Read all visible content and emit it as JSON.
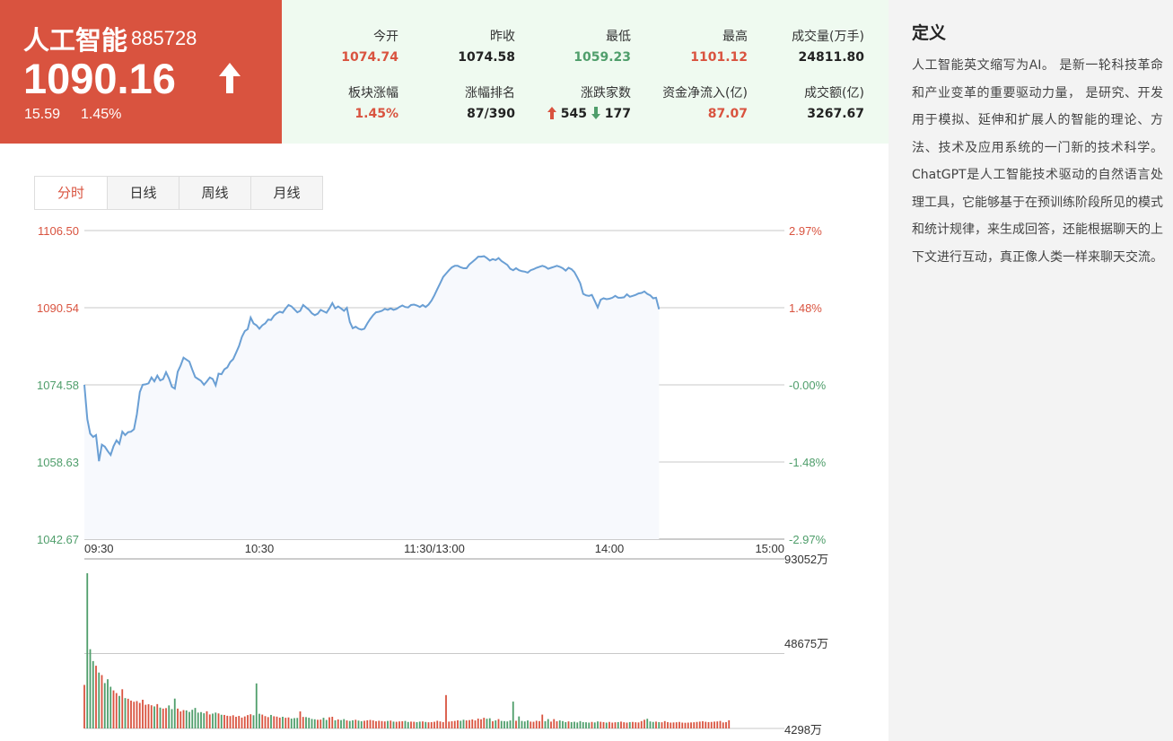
{
  "header": {
    "name": "人工智能",
    "code": "885728",
    "price": "1090.16",
    "change": "15.59",
    "change_pct": "1.45%",
    "direction": "up"
  },
  "stats": [
    {
      "label": "今开",
      "value": "1074.74",
      "color": "red"
    },
    {
      "label": "昨收",
      "value": "1074.58",
      "color": "dark"
    },
    {
      "label": "最低",
      "value": "1059.23",
      "color": "green"
    },
    {
      "label": "最高",
      "value": "1101.12",
      "color": "red"
    },
    {
      "label": "成交量(万手)",
      "value": "24811.80",
      "color": "dark"
    },
    {
      "label": "板块涨幅",
      "value": "1.45%",
      "color": "red"
    },
    {
      "label": "涨幅排名",
      "value": "87/390",
      "color": "dark"
    },
    {
      "label": "涨跌家数",
      "up": "545",
      "down": "177",
      "color": "dark"
    },
    {
      "label": "资金净流入(亿)",
      "value": "87.07",
      "color": "red"
    },
    {
      "label": "成交额(亿)",
      "value": "3267.67",
      "color": "dark"
    }
  ],
  "definition": {
    "title": "定义",
    "body": "人工智能英文缩写为AI。 是新一轮科技革命和产业变革的重要驱动力量， 是研究、开发用于模拟、延伸和扩展人的智能的理论、方法、技术及应用系统的一门新的技术科学。ChatGPT是人工智能技术驱动的自然语言处理工具，它能够基于在预训练阶段所见的模式和统计规律，来生成回答，还能根据聊天的上下文进行互动，真正像人类一样来聊天交流。"
  },
  "tabs": [
    {
      "label": "分时",
      "active": true
    },
    {
      "label": "日线",
      "active": false
    },
    {
      "label": "周线",
      "active": false
    },
    {
      "label": "月线",
      "active": false
    }
  ],
  "colors": {
    "up": "#d9533f",
    "down": "#4f9e6b",
    "line": "#6a9fd4",
    "area": "#f7f9fd",
    "grid": "#c8c8c8"
  },
  "chart_data": {
    "type": "line",
    "title": "",
    "xlabel": "",
    "ylabel": "",
    "time_ticks": [
      "09:30",
      "10:30",
      "11:30/13:00",
      "14:00",
      "15:00"
    ],
    "price_ticks": [
      "1106.50",
      "1090.54",
      "1074.58",
      "1058.63",
      "1042.67"
    ],
    "pct_ticks": [
      "2.97%",
      "1.48%",
      "-0.00%",
      "-1.48%",
      "-2.97%"
    ],
    "ylim": [
      1042.67,
      1106.5
    ],
    "prev_close": 1074.58,
    "minutes_total": 240,
    "price_series": [
      1074.6,
      1067.5,
      1064.5,
      1063.8,
      1064.2,
      1058.8,
      1062.2,
      1061.8,
      1060.9,
      1060.1,
      1061.9,
      1063.1,
      1062.4,
      1064.9,
      1064.2,
      1064.8,
      1064.9,
      1065.4,
      1068.5,
      1073.1,
      1074.6,
      1074.7,
      1074.9,
      1076.1,
      1075.3,
      1076.5,
      1075.5,
      1075.8,
      1077.2,
      1075.9,
      1074.2,
      1073.8,
      1077.3,
      1078.6,
      1080.2,
      1079.8,
      1079.4,
      1077.7,
      1076.2,
      1075.8,
      1075.4,
      1074.6,
      1075.3,
      1076.1,
      1075.8,
      1074.5,
      1076.9,
      1076.8,
      1077.8,
      1078.2,
      1079.3,
      1079.9,
      1081.2,
      1082.6,
      1084.5,
      1085.7,
      1086.1,
      1088.5,
      1087.3,
      1086.9,
      1086.2,
      1086.9,
      1087.3,
      1088.1,
      1088.0,
      1088.9,
      1089.4,
      1089.7,
      1089.5,
      1090.4,
      1091.1,
      1090.8,
      1090.2,
      1089.6,
      1089.9,
      1091.1,
      1090.6,
      1090.1,
      1089.4,
      1089.0,
      1089.3,
      1090.1,
      1089.8,
      1089.5,
      1090.4,
      1091.5,
      1090.4,
      1090.8,
      1090.4,
      1089.9,
      1090.5,
      1087.6,
      1086.3,
      1086.6,
      1086.2,
      1086.0,
      1086.2,
      1087.3,
      1088.2,
      1089.0,
      1089.6,
      1089.7,
      1089.9,
      1090.3,
      1090.1,
      1090.4,
      1090.1,
      1090.3,
      1090.7,
      1091.0,
      1090.7,
      1090.6,
      1091.1,
      1091.2,
      1091.0,
      1090.7,
      1091.1,
      1090.7,
      1091.2,
      1092.0,
      1093.1,
      1094.4,
      1095.6,
      1096.9,
      1097.6,
      1098.3,
      1098.9,
      1099.2,
      1099.2,
      1098.9,
      1098.7,
      1098.7,
      1099.5,
      1100.0,
      1100.5,
      1101.1,
      1101.1,
      1101.2,
      1100.8,
      1100.3,
      1100.6,
      1100.4,
      1100.8,
      1100.2,
      1099.8,
      1099.4,
      1098.6,
      1098.3,
      1098.7,
      1098.3,
      1098.1,
      1098.0,
      1097.8,
      1098.3,
      1098.5,
      1098.8,
      1099.0,
      1099.2,
      1099.0,
      1098.6,
      1098.8,
      1099.0,
      1099.2,
      1099.0,
      1098.7,
      1098.2,
      1098.8,
      1098.5,
      1097.9,
      1096.8,
      1095.6,
      1093.4,
      1093.1,
      1093.0,
      1093.2,
      1091.9,
      1090.6,
      1092.2,
      1092.5,
      1092.3,
      1092.4,
      1092.6,
      1093.0,
      1092.6,
      1092.6,
      1092.7,
      1093.3,
      1092.8,
      1093.0,
      1093.2,
      1093.5,
      1093.6,
      1093.9,
      1093.4,
      1093.1,
      1092.5,
      1092.6,
      1090.2
    ],
    "volume_max": 93052,
    "volume_ticks": [
      "93052万",
      "48675万",
      "4298万"
    ],
    "volume_series": [
      26100,
      93052,
      47500,
      40400,
      37600,
      33500,
      32000,
      27200,
      29500,
      25000,
      22800,
      21200,
      19500,
      23500,
      18200,
      17800,
      16700,
      16000,
      16400,
      15300,
      17200,
      14200,
      14500,
      13900,
      13200,
      14600,
      12500,
      11900,
      12200,
      13800,
      11600,
      17900,
      11900,
      10200,
      11000,
      10800,
      9900,
      11200,
      12300,
      9500,
      9800,
      9100,
      10300,
      8400,
      8900,
      9500,
      9000,
      8200,
      8100,
      7600,
      7400,
      7900,
      7000,
      7500,
      6500,
      7200,
      8000,
      8500,
      7900,
      27000,
      8800,
      8300,
      7400,
      6800,
      8100,
      7300,
      7100,
      6500,
      7000,
      6400,
      6600,
      5900,
      6200,
      6300,
      10200,
      6900,
      6800,
      6400,
      5700,
      5500,
      5200,
      5300,
      6400,
      5100,
      6700,
      7000,
      4900,
      5400,
      5000,
      5600,
      4800,
      4500,
      4900,
      5200,
      4700,
      4300,
      4600,
      4900,
      5100,
      4800,
      4300,
      4600,
      4400,
      4200,
      4500,
      4700,
      4100,
      4000,
      4200,
      4300,
      4500,
      3900,
      4100,
      4000,
      3800,
      4100,
      4200,
      3900,
      3700,
      3800,
      4000,
      4600,
      4200,
      3800,
      20000,
      4100,
      4300,
      4500,
      4900,
      4600,
      5200,
      4800,
      5000,
      5400,
      4800,
      5900,
      5500,
      6400,
      5800,
      6100,
      4300,
      4800,
      5600,
      4500,
      4400,
      4200,
      4800,
      16100,
      4600,
      7200,
      4500,
      4200,
      4800,
      4100,
      4000,
      4600,
      4400,
      8300,
      4300,
      5600,
      4100,
      5600,
      4300,
      4800,
      4400,
      3800,
      4200,
      3800,
      4000,
      3600,
      4400,
      3800,
      3700,
      3500,
      3900,
      3600,
      4200,
      4000,
      3800,
      3500,
      3900,
      3500,
      3700,
      3800,
      4100,
      3700,
      3500,
      3800,
      3900,
      3700,
      3600,
      4400,
      5200,
      5800,
      4200,
      3900,
      4100,
      3800,
      3700,
      4400,
      3800,
      3500,
      3600,
      3700,
      3900,
      3500,
      3400,
      3500,
      3600,
      3700,
      3900,
      4100,
      4300,
      4000,
      3800,
      3900,
      4100,
      4200,
      4500,
      3600,
      3800,
      4900
    ]
  }
}
